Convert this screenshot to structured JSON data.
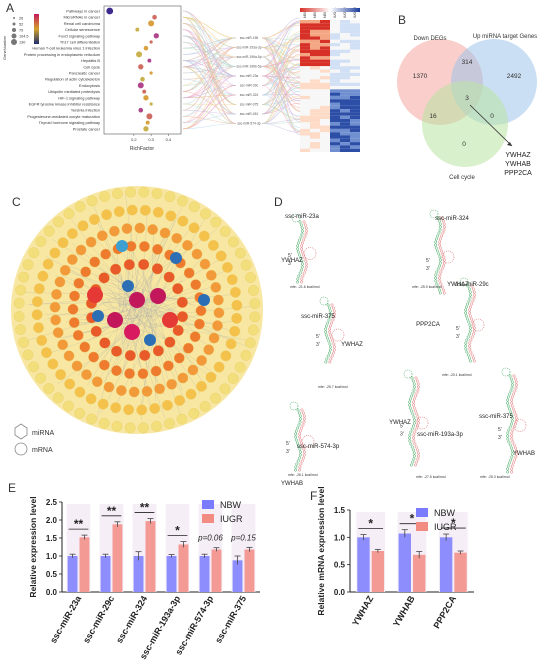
{
  "panels": {
    "a": "A",
    "b": "B",
    "c": "C",
    "d": "D",
    "e": "E",
    "f": "F"
  },
  "panelA": {
    "pathways": [
      "Pathways in cancer",
      "MicroRNAs in cancer",
      "Renal cell carcinoma",
      "Cellular senescence",
      "FoxO signaling pathway",
      "Th17 cell differentiation",
      "Human T-cell leukemia virus 1 infection",
      "Protein processing in endoplasmic reticulum",
      "Hepatitis B",
      "Cell cycle",
      "Pancreatic cancer",
      "Regulation of actin cytoskeleton",
      "Endocytosis",
      "Ubiquitin mediated proteolysis",
      "HIF-1 signaling pathway",
      "EGFR tyrosine kinase inhibitor resistance",
      "Yersinia infection",
      "Progesterone-mediated oocyte maturation",
      "Thyroid hormone signaling pathway",
      "Prostate cancer"
    ],
    "richfactor": [
      0.06,
      0.32,
      0.3,
      0.22,
      0.33,
      0.3,
      0.27,
      0.23,
      0.29,
      0.24,
      0.3,
      0.25,
      0.24,
      0.26,
      0.27,
      0.3,
      0.24,
      0.29,
      0.28,
      0.27
    ],
    "xlabel": "RichFactor",
    "xticks": [
      "0.2",
      "0.3",
      "0.4"
    ],
    "legend_size_title": "GeneNumber",
    "legend_sizes": [
      "26",
      "52",
      "79",
      "104.5",
      "130"
    ],
    "mirnas": [
      "ssc-miR-155",
      "ssc-miR-193a-3p",
      "ssc-miR-196a-5p",
      "ssc-miR-196b-5p",
      "ssc-miR-23a",
      "ssc-miR-29c",
      "ssc-miR-324",
      "ssc-miR-375",
      "ssc-miR-451",
      "ssc-miR-574-3p"
    ],
    "heat_cols": [
      "NBW1",
      "NBW2",
      "NBW3",
      "IUGR1",
      "IUGR2",
      "IUGR3"
    ]
  },
  "panelB": {
    "set_down": "Down DEGs",
    "set_up": "Up miRNA target Genes",
    "set_cc": "Cell cycle",
    "n_down_only": "1370",
    "n_up_only": "2492",
    "n_down_up": "314",
    "n_all": "3",
    "n_down_cc": "16",
    "n_up_cc": "0",
    "n_cc_only": "0",
    "genes": [
      "YWHAZ",
      "YWHAB",
      "PPP2CA"
    ]
  },
  "panelC": {
    "legend_mirna": "miRNA",
    "legend_mrna": "mRNA"
  },
  "panelD": {
    "structures": [
      {
        "mirna": "ssc-miR-23a",
        "target": "YWHAZ",
        "mfe": "mfe: -21.6 kcal/mol"
      },
      {
        "mirna": "ssc-miR-324",
        "target": "YWHAZ",
        "mfe": "mfe: -25.9 kcal/mol"
      },
      {
        "mirna": "ssc-miR-375",
        "target": "YWHAZ",
        "mfe": "mfe: -25.7 kcal/mol"
      },
      {
        "mirna": "ssc-miR-29c",
        "target": "PPP2CA",
        "mfe": "mfe: -20.1 kcal/mol"
      },
      {
        "mirna": "ssc-miR-574-3p",
        "target": "YWHAB",
        "mfe": "mfe: -26.1 kcal/mol"
      },
      {
        "mirna": "ssc-miR-193a-3p",
        "target": "YWHAZ",
        "mfe": "mfe: -27.5 kcal/mol"
      },
      {
        "mirna": "ssc-miR-375",
        "target": "YWHAB",
        "mfe": "mfe: -25.3 kcal/mol"
      }
    ],
    "prime5": "5'",
    "prime3": "3'"
  },
  "chart_data": [
    {
      "type": "bar",
      "ylabel": "Relative expression level",
      "ylim": [
        0,
        2.5
      ],
      "yticks": [
        "0.0",
        "0.5",
        "1.0",
        "1.5",
        "2.0",
        "2.5"
      ],
      "categories": [
        "ssc-miR-23a",
        "ssc-miR-29c",
        "ssc-miR-324",
        "ssc-miR-193a-3p",
        "ssc-miR-574-3p",
        "ssc-miR-375"
      ],
      "series": [
        {
          "name": "NBW",
          "color": "#7b7bff",
          "values": [
            1.0,
            1.0,
            1.0,
            1.0,
            1.0,
            0.88
          ],
          "errors": [
            0.05,
            0.05,
            0.12,
            0.04,
            0.05,
            0.12
          ]
        },
        {
          "name": "IUGR",
          "color": "#f28b82",
          "values": [
            1.52,
            1.88,
            1.97,
            1.32,
            1.18,
            1.18
          ],
          "errors": [
            0.06,
            0.07,
            0.07,
            0.08,
            0.05,
            0.06
          ]
        }
      ],
      "significance": [
        "**",
        "**",
        "**",
        "*",
        "p=0.06",
        "p=0.15"
      ]
    },
    {
      "type": "bar",
      "ylabel": "Relative mRNA expression level",
      "ylim": [
        0,
        1.5
      ],
      "yticks": [
        "0.0",
        "0.5",
        "1.0",
        "1.5"
      ],
      "categories": [
        "YWHAZ",
        "YWHAB",
        "PPP2CA"
      ],
      "series": [
        {
          "name": "NBW",
          "color": "#7b7bff",
          "values": [
            1.0,
            1.07,
            1.0
          ],
          "errors": [
            0.05,
            0.07,
            0.06
          ]
        },
        {
          "name": "IUGR",
          "color": "#f28b82",
          "values": [
            0.75,
            0.68,
            0.72
          ],
          "errors": [
            0.03,
            0.06,
            0.03
          ]
        }
      ],
      "significance": [
        "*",
        "*",
        "*"
      ]
    }
  ]
}
